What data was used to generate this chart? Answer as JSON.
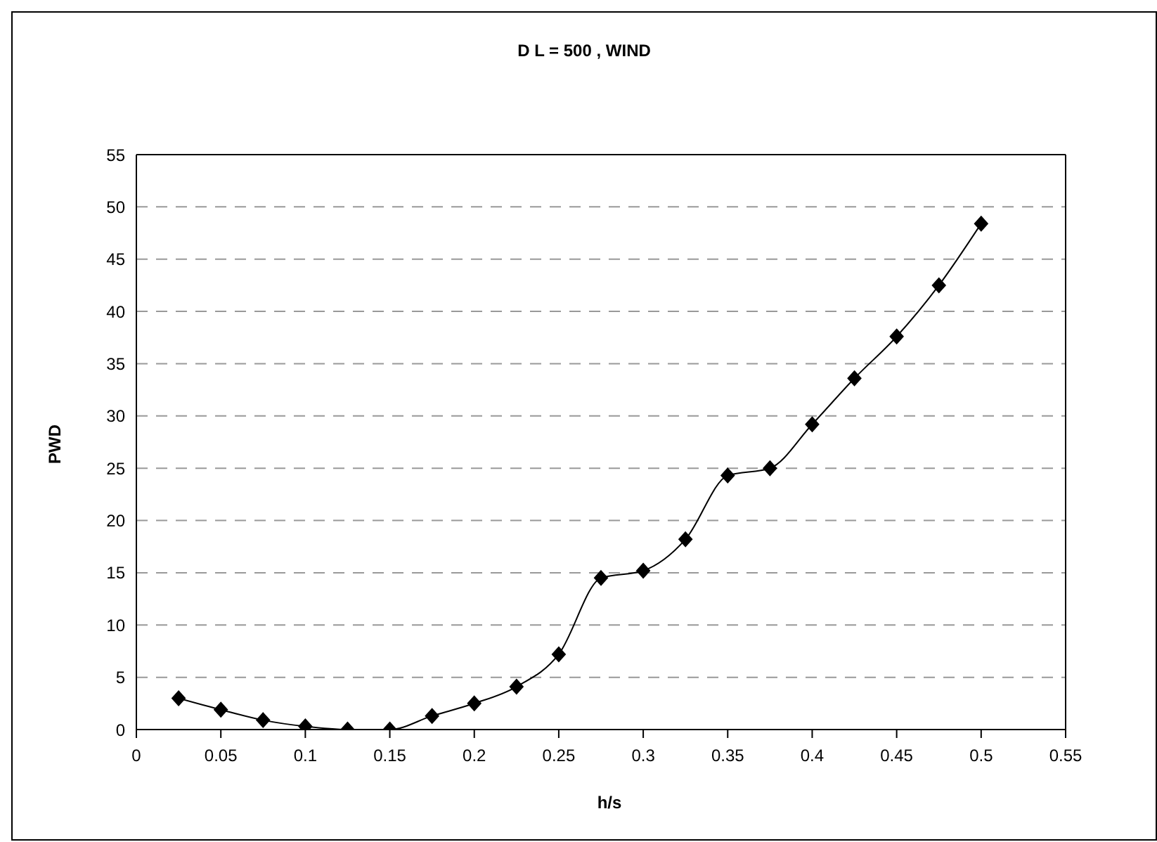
{
  "chart_data": {
    "type": "line",
    "title": "D L = 500 , WIND",
    "xlabel": "h/s",
    "ylabel": "PWD",
    "x": [
      0.025,
      0.05,
      0.075,
      0.1,
      0.125,
      0.15,
      0.175,
      0.2,
      0.225,
      0.25,
      0.275,
      0.3,
      0.325,
      0.35,
      0.375,
      0.4,
      0.425,
      0.45,
      0.475,
      0.5
    ],
    "series": [
      {
        "color": "#000000",
        "values": [
          3,
          1.9,
          0.9,
          0.3,
          0,
          0,
          1.3,
          2.5,
          4.1,
          7.2,
          14.5,
          15.2,
          18.2,
          24.3,
          25.0,
          29.2,
          33.6,
          37.6,
          42.5,
          48.4
        ]
      }
    ],
    "xlim": [
      0,
      0.55
    ],
    "xticks": [
      0,
      0.05,
      0.1,
      0.15,
      0.2,
      0.25,
      0.3,
      0.35,
      0.4,
      0.45,
      0.5,
      0.55
    ],
    "ylim": [
      0,
      55
    ],
    "yticks": [
      0,
      5,
      10,
      15,
      20,
      25,
      30,
      35,
      40,
      45,
      50,
      55
    ],
    "grid": "y",
    "legend": false,
    "marker": "diamond",
    "line_style": "solid"
  }
}
